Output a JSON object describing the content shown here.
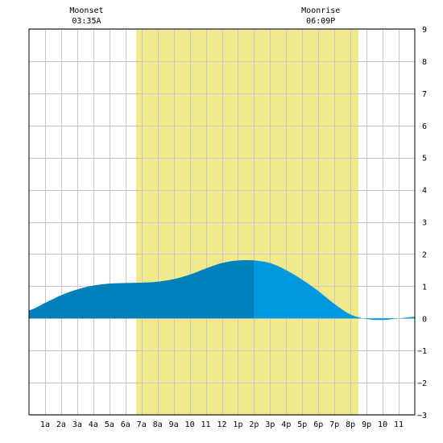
{
  "chart_data": {
    "type": "area",
    "title": "",
    "xlabel": "",
    "ylabel": "",
    "xlim": [
      0,
      24
    ],
    "ylim": [
      -3,
      9
    ],
    "x_ticks": [
      {
        "x": 1,
        "label": "1a"
      },
      {
        "x": 2,
        "label": "2a"
      },
      {
        "x": 3,
        "label": "3a"
      },
      {
        "x": 4,
        "label": "4a"
      },
      {
        "x": 5,
        "label": "5a"
      },
      {
        "x": 6,
        "label": "6a"
      },
      {
        "x": 7,
        "label": "7a"
      },
      {
        "x": 8,
        "label": "8a"
      },
      {
        "x": 9,
        "label": "9a"
      },
      {
        "x": 10,
        "label": "10"
      },
      {
        "x": 11,
        "label": "11"
      },
      {
        "x": 12,
        "label": "12"
      },
      {
        "x": 13,
        "label": "1p"
      },
      {
        "x": 14,
        "label": "2p"
      },
      {
        "x": 15,
        "label": "3p"
      },
      {
        "x": 16,
        "label": "4p"
      },
      {
        "x": 17,
        "label": "5p"
      },
      {
        "x": 18,
        "label": "6p"
      },
      {
        "x": 19,
        "label": "7p"
      },
      {
        "x": 20,
        "label": "8p"
      },
      {
        "x": 21,
        "label": "9p"
      },
      {
        "x": 22,
        "label": "10"
      },
      {
        "x": 23,
        "label": "11"
      }
    ],
    "y_ticks": [
      -3,
      -2,
      -1,
      0,
      1,
      2,
      3,
      4,
      5,
      6,
      7,
      8,
      9
    ],
    "grid": true,
    "daylight": {
      "start": 6.67,
      "end": 20.5,
      "color": "#f0ea8c"
    },
    "annotations": [
      {
        "x": 3.58,
        "line1": "Moonset",
        "line2": "03:35A"
      },
      {
        "x": 18.15,
        "line1": "Moonrise",
        "line2": "06:09P"
      }
    ],
    "series": [
      {
        "x": [
          0,
          1,
          2,
          3,
          4,
          5,
          6,
          7,
          8,
          9,
          10,
          11,
          12,
          13,
          14,
          15,
          16,
          17,
          18,
          19,
          20,
          21,
          22,
          23,
          24
        ],
        "y": [
          0.25,
          0.48,
          0.72,
          0.9,
          1.02,
          1.08,
          1.1,
          1.11,
          1.14,
          1.22,
          1.36,
          1.55,
          1.72,
          1.8,
          1.8,
          1.72,
          1.5,
          1.2,
          0.85,
          0.45,
          0.12,
          -0.02,
          -0.05,
          0.0,
          0.05
        ]
      }
    ],
    "split_x": 14,
    "colors": {
      "before_split": "#0080bb",
      "after_split": "#0099dd"
    }
  }
}
